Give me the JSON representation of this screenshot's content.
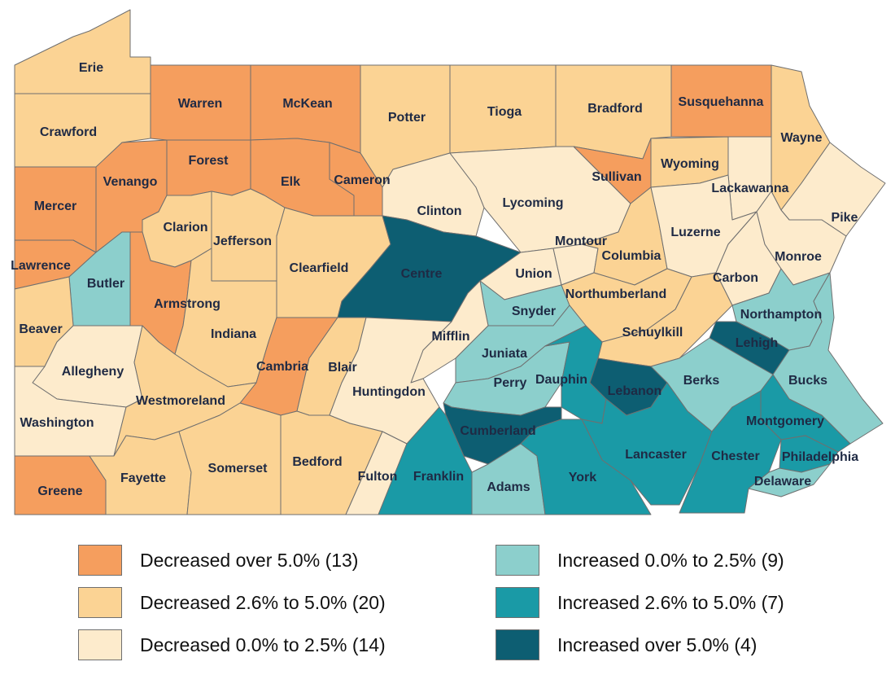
{
  "colors": {
    "dec_over_5": "#f59e5e",
    "dec_2_6_to_5": "#fbd394",
    "dec_0_to_2_5": "#fdebcc",
    "inc_0_to_2_5": "#8ccfcc",
    "inc_2_6_to_5": "#1a9aa6",
    "inc_over_5": "#0d5e72",
    "border": "#6f6f6f"
  },
  "legend": [
    {
      "category": "dec_over_5",
      "label": "Decreased over 5.0% (13)"
    },
    {
      "category": "dec_2_6_to_5",
      "label": "Decreased 2.6% to 5.0% (20)"
    },
    {
      "category": "dec_0_to_2_5",
      "label": "Decreased 0.0% to 2.5% (14)"
    },
    {
      "category": "inc_0_to_2_5",
      "label": "Increased 0.0% to 2.5% (9)"
    },
    {
      "category": "inc_2_6_to_5",
      "label": "Increased 2.6% to 5.0% (7)"
    },
    {
      "category": "inc_over_5",
      "label": "Increased over 5.0% (4)"
    }
  ],
  "counties": [
    {
      "name": "Erie",
      "category": "dec_2_6_to_5"
    },
    {
      "name": "Crawford",
      "category": "dec_2_6_to_5"
    },
    {
      "name": "Warren",
      "category": "dec_over_5"
    },
    {
      "name": "McKean",
      "category": "dec_over_5"
    },
    {
      "name": "Potter",
      "category": "dec_2_6_to_5"
    },
    {
      "name": "Tioga",
      "category": "dec_2_6_to_5"
    },
    {
      "name": "Bradford",
      "category": "dec_2_6_to_5"
    },
    {
      "name": "Susquehanna",
      "category": "dec_over_5"
    },
    {
      "name": "Wayne",
      "category": "dec_2_6_to_5"
    },
    {
      "name": "Mercer",
      "category": "dec_over_5"
    },
    {
      "name": "Venango",
      "category": "dec_over_5"
    },
    {
      "name": "Forest",
      "category": "dec_over_5"
    },
    {
      "name": "Elk",
      "category": "dec_over_5"
    },
    {
      "name": "Cameron",
      "category": "dec_over_5"
    },
    {
      "name": "Clinton",
      "category": "dec_0_to_2_5"
    },
    {
      "name": "Lycoming",
      "category": "dec_0_to_2_5"
    },
    {
      "name": "Sullivan",
      "category": "dec_over_5"
    },
    {
      "name": "Wyoming",
      "category": "dec_2_6_to_5"
    },
    {
      "name": "Lackawanna",
      "category": "dec_0_to_2_5"
    },
    {
      "name": "Pike",
      "category": "dec_0_to_2_5"
    },
    {
      "name": "Lawrence",
      "category": "dec_over_5"
    },
    {
      "name": "Butler",
      "category": "inc_0_to_2_5"
    },
    {
      "name": "Clarion",
      "category": "dec_2_6_to_5"
    },
    {
      "name": "Jefferson",
      "category": "dec_2_6_to_5"
    },
    {
      "name": "Clearfield",
      "category": "dec_2_6_to_5"
    },
    {
      "name": "Centre",
      "category": "inc_over_5"
    },
    {
      "name": "Union",
      "category": "dec_0_to_2_5"
    },
    {
      "name": "Montour",
      "category": "dec_0_to_2_5"
    },
    {
      "name": "Columbia",
      "category": "dec_2_6_to_5"
    },
    {
      "name": "Luzerne",
      "category": "dec_0_to_2_5"
    },
    {
      "name": "Carbon",
      "category": "dec_0_to_2_5"
    },
    {
      "name": "Monroe",
      "category": "dec_0_to_2_5"
    },
    {
      "name": "Beaver",
      "category": "dec_2_6_to_5"
    },
    {
      "name": "Armstrong",
      "category": "dec_over_5"
    },
    {
      "name": "Indiana",
      "category": "dec_2_6_to_5"
    },
    {
      "name": "Snyder",
      "category": "inc_0_to_2_5"
    },
    {
      "name": "Northumberland",
      "category": "dec_2_6_to_5"
    },
    {
      "name": "Schuylkill",
      "category": "dec_2_6_to_5"
    },
    {
      "name": "Northampton",
      "category": "inc_0_to_2_5"
    },
    {
      "name": "Lehigh",
      "category": "inc_over_5"
    },
    {
      "name": "Allegheny",
      "category": "dec_0_to_2_5"
    },
    {
      "name": "Cambria",
      "category": "dec_over_5"
    },
    {
      "name": "Blair",
      "category": "dec_2_6_to_5"
    },
    {
      "name": "Mifflin",
      "category": "dec_0_to_2_5"
    },
    {
      "name": "Juniata",
      "category": "inc_0_to_2_5"
    },
    {
      "name": "Huntingdon",
      "category": "dec_0_to_2_5"
    },
    {
      "name": "Perry",
      "category": "inc_0_to_2_5"
    },
    {
      "name": "Dauphin",
      "category": "inc_2_6_to_5"
    },
    {
      "name": "Lebanon",
      "category": "inc_over_5"
    },
    {
      "name": "Berks",
      "category": "inc_0_to_2_5"
    },
    {
      "name": "Bucks",
      "category": "inc_0_to_2_5"
    },
    {
      "name": "Washington",
      "category": "dec_0_to_2_5"
    },
    {
      "name": "Westmoreland",
      "category": "dec_2_6_to_5"
    },
    {
      "name": "Cumberland",
      "category": "inc_over_5"
    },
    {
      "name": "Montgomery",
      "category": "inc_2_6_to_5"
    },
    {
      "name": "Lancaster",
      "category": "inc_2_6_to_5"
    },
    {
      "name": "Chester",
      "category": "inc_2_6_to_5"
    },
    {
      "name": "Philadelphia",
      "category": "inc_2_6_to_5"
    },
    {
      "name": "Delaware",
      "category": "inc_0_to_2_5"
    },
    {
      "name": "Greene",
      "category": "dec_over_5"
    },
    {
      "name": "Fayette",
      "category": "dec_2_6_to_5"
    },
    {
      "name": "Somerset",
      "category": "dec_2_6_to_5"
    },
    {
      "name": "Bedford",
      "category": "dec_2_6_to_5"
    },
    {
      "name": "Fulton",
      "category": "dec_0_to_2_5"
    },
    {
      "name": "Franklin",
      "category": "inc_2_6_to_5"
    },
    {
      "name": "Adams",
      "category": "inc_0_to_2_5"
    },
    {
      "name": "York",
      "category": "inc_2_6_to_5"
    }
  ]
}
